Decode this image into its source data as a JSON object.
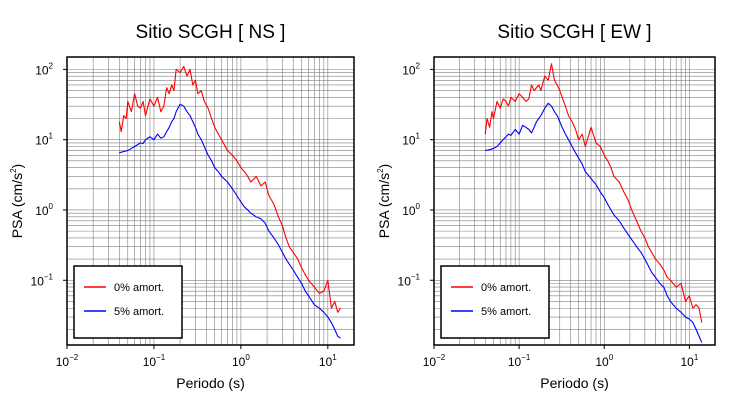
{
  "chart_data": [
    {
      "type": "line",
      "title": "Sitio SCGH [ NS ]",
      "xlabel": "Periodo (s)",
      "ylabel_main": "PSA (cm/s",
      "ylabel_sup": "2",
      "ylabel_end": ")",
      "xscale": "log",
      "yscale": "log",
      "xlim": [
        0.01,
        20
      ],
      "ylim": [
        0.012,
        150
      ],
      "grid": true,
      "legend_position": "bottom-left",
      "x_ticks": [
        {
          "base": "10",
          "exp": "−2",
          "value": 0.01
        },
        {
          "base": "10",
          "exp": "−1",
          "value": 0.1
        },
        {
          "base": "10",
          "exp": "0",
          "value": 1
        },
        {
          "base": "10",
          "exp": "1",
          "value": 10
        }
      ],
      "y_ticks": [
        {
          "base": "10",
          "exp": "−1",
          "value": 0.1
        },
        {
          "base": "10",
          "exp": "0",
          "value": 1
        },
        {
          "base": "10",
          "exp": "1",
          "value": 10
        },
        {
          "base": "10",
          "exp": "2",
          "value": 100
        }
      ],
      "series": [
        {
          "name": "0% amort.",
          "color": "#ff0000",
          "x": [
            0.04,
            0.042,
            0.045,
            0.048,
            0.05,
            0.055,
            0.06,
            0.065,
            0.07,
            0.075,
            0.08,
            0.09,
            0.1,
            0.11,
            0.12,
            0.13,
            0.14,
            0.15,
            0.16,
            0.17,
            0.18,
            0.2,
            0.22,
            0.24,
            0.26,
            0.28,
            0.3,
            0.32,
            0.35,
            0.38,
            0.42,
            0.46,
            0.5,
            0.55,
            0.6,
            0.7,
            0.8,
            0.9,
            1.0,
            1.1,
            1.2,
            1.3,
            1.5,
            1.7,
            1.9,
            2.1,
            2.4,
            2.7,
            3.0,
            3.3,
            3.6,
            4.0,
            4.5,
            5.0,
            5.5,
            6.0,
            7.0,
            8.0,
            9.0,
            10.0,
            11.0,
            12.0,
            13.0,
            14.0
          ],
          "y": [
            18,
            13,
            22,
            20,
            35,
            25,
            45,
            30,
            28,
            35,
            22,
            38,
            30,
            40,
            25,
            30,
            55,
            45,
            60,
            50,
            100,
            90,
            110,
            80,
            100,
            60,
            70,
            45,
            50,
            35,
            28,
            20,
            15,
            12,
            10,
            7,
            6,
            5,
            4,
            3.5,
            3,
            2.5,
            3,
            2.2,
            2.5,
            1.6,
            1.2,
            0.8,
            0.6,
            0.4,
            0.3,
            0.25,
            0.2,
            0.15,
            0.12,
            0.1,
            0.08,
            0.065,
            0.07,
            0.1,
            0.04,
            0.05,
            0.035,
            0.04
          ]
        },
        {
          "name": "5% amort.",
          "color": "#0000ff",
          "x": [
            0.04,
            0.045,
            0.05,
            0.055,
            0.06,
            0.065,
            0.07,
            0.075,
            0.08,
            0.09,
            0.1,
            0.11,
            0.12,
            0.13,
            0.14,
            0.15,
            0.16,
            0.17,
            0.18,
            0.2,
            0.22,
            0.24,
            0.26,
            0.28,
            0.3,
            0.32,
            0.35,
            0.38,
            0.42,
            0.46,
            0.5,
            0.55,
            0.6,
            0.7,
            0.8,
            0.9,
            1.0,
            1.1,
            1.2,
            1.3,
            1.5,
            1.7,
            1.9,
            2.1,
            2.4,
            2.7,
            3.0,
            3.3,
            3.6,
            4.0,
            4.5,
            5.0,
            5.5,
            6.0,
            7.0,
            8.0,
            9.0,
            10.0,
            11.0,
            12.0,
            13.0,
            14.0
          ],
          "y": [
            6.5,
            6.8,
            7,
            7.5,
            8,
            8.5,
            9,
            8.8,
            10,
            11,
            10,
            12,
            10.5,
            11,
            13,
            15,
            18,
            20,
            25,
            32,
            30,
            25,
            22,
            18,
            15,
            12,
            10,
            8,
            6,
            5,
            4,
            3.5,
            3,
            2.5,
            2,
            1.6,
            1.3,
            1.1,
            1.0,
            0.9,
            0.8,
            0.75,
            0.65,
            0.5,
            0.4,
            0.32,
            0.25,
            0.2,
            0.17,
            0.14,
            0.11,
            0.09,
            0.07,
            0.06,
            0.045,
            0.04,
            0.035,
            0.03,
            0.025,
            0.02,
            0.016,
            0.015
          ]
        }
      ]
    },
    {
      "type": "line",
      "title": "Sitio SCGH [ EW ]",
      "xlabel": "Periodo (s)",
      "ylabel_main": "PSA (cm/s",
      "ylabel_sup": "2",
      "ylabel_end": ")",
      "xscale": "log",
      "yscale": "log",
      "xlim": [
        0.01,
        20
      ],
      "ylim": [
        0.012,
        150
      ],
      "grid": true,
      "legend_position": "bottom-left",
      "x_ticks": [
        {
          "base": "10",
          "exp": "−2",
          "value": 0.01
        },
        {
          "base": "10",
          "exp": "−1",
          "value": 0.1
        },
        {
          "base": "10",
          "exp": "0",
          "value": 1
        },
        {
          "base": "10",
          "exp": "1",
          "value": 10
        }
      ],
      "y_ticks": [
        {
          "base": "10",
          "exp": "−1",
          "value": 0.1
        },
        {
          "base": "10",
          "exp": "0",
          "value": 1
        },
        {
          "base": "10",
          "exp": "1",
          "value": 10
        },
        {
          "base": "10",
          "exp": "2",
          "value": 100
        }
      ],
      "series": [
        {
          "name": "0% amort.",
          "color": "#ff0000",
          "x": [
            0.04,
            0.042,
            0.045,
            0.048,
            0.05,
            0.055,
            0.06,
            0.065,
            0.07,
            0.075,
            0.08,
            0.09,
            0.1,
            0.11,
            0.12,
            0.13,
            0.14,
            0.15,
            0.16,
            0.17,
            0.18,
            0.2,
            0.22,
            0.24,
            0.26,
            0.28,
            0.3,
            0.32,
            0.35,
            0.38,
            0.42,
            0.46,
            0.5,
            0.55,
            0.6,
            0.7,
            0.8,
            0.9,
            1.0,
            1.1,
            1.2,
            1.3,
            1.5,
            1.7,
            1.9,
            2.1,
            2.4,
            2.7,
            3.0,
            3.3,
            3.6,
            4.0,
            4.5,
            5.0,
            5.5,
            6.0,
            7.0,
            8.0,
            9.0,
            10.0,
            11.0,
            12.0,
            13.0,
            14.0
          ],
          "y": [
            12,
            20,
            15,
            25,
            20,
            35,
            28,
            38,
            35,
            30,
            40,
            35,
            45,
            40,
            35,
            38,
            60,
            50,
            55,
            60,
            50,
            80,
            70,
            120,
            70,
            60,
            50,
            40,
            30,
            22,
            18,
            14,
            10,
            12,
            8,
            15,
            9,
            8,
            6,
            5,
            4,
            3,
            2.5,
            1.8,
            1.4,
            1.0,
            0.7,
            0.5,
            0.4,
            0.3,
            0.25,
            0.2,
            0.17,
            0.14,
            0.11,
            0.1,
            0.08,
            0.09,
            0.05,
            0.06,
            0.04,
            0.045,
            0.04,
            0.025
          ]
        },
        {
          "name": "5% amort.",
          "color": "#0000ff",
          "x": [
            0.04,
            0.045,
            0.05,
            0.055,
            0.06,
            0.065,
            0.07,
            0.075,
            0.08,
            0.09,
            0.1,
            0.11,
            0.12,
            0.13,
            0.14,
            0.15,
            0.16,
            0.17,
            0.18,
            0.2,
            0.22,
            0.24,
            0.26,
            0.28,
            0.3,
            0.32,
            0.35,
            0.38,
            0.42,
            0.46,
            0.5,
            0.55,
            0.6,
            0.7,
            0.8,
            0.9,
            1.0,
            1.1,
            1.2,
            1.3,
            1.5,
            1.7,
            1.9,
            2.1,
            2.4,
            2.7,
            3.0,
            3.3,
            3.6,
            4.0,
            4.5,
            5.0,
            5.5,
            6.0,
            7.0,
            8.0,
            9.0,
            10.0,
            11.0,
            12.0,
            13.0,
            14.0
          ],
          "y": [
            7,
            7.2,
            7.5,
            8,
            9,
            10,
            11,
            12,
            11.5,
            14,
            12,
            16,
            15,
            14,
            12.5,
            15,
            18,
            20,
            22,
            28,
            33,
            30,
            25,
            22,
            18,
            15,
            12,
            10,
            8,
            6.5,
            5.5,
            4.5,
            3.5,
            2.8,
            2.3,
            1.8,
            1.5,
            1.2,
            1.0,
            0.85,
            0.7,
            0.55,
            0.45,
            0.38,
            0.3,
            0.25,
            0.2,
            0.16,
            0.13,
            0.11,
            0.09,
            0.08,
            0.06,
            0.05,
            0.04,
            0.035,
            0.03,
            0.028,
            0.025,
            0.02,
            0.016,
            0.013
          ]
        }
      ]
    }
  ]
}
